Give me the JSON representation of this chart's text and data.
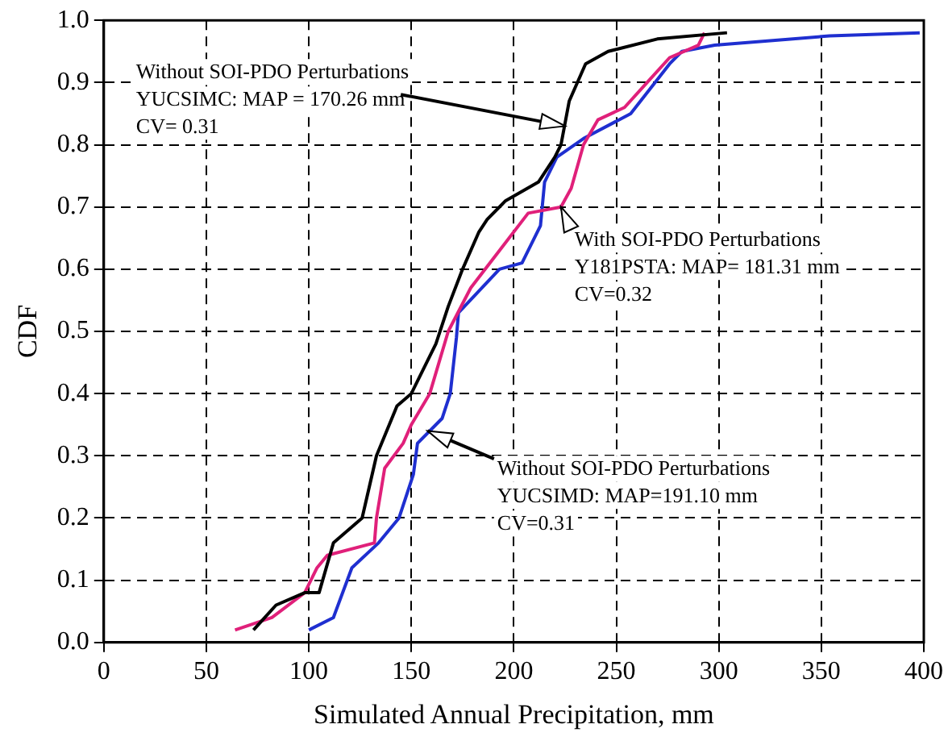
{
  "chart_data": {
    "type": "line",
    "xlabel": "Simulated Annual Precipitation, mm",
    "ylabel": "CDF",
    "xlim": [
      0,
      400
    ],
    "xticks": [
      0,
      50,
      100,
      150,
      200,
      250,
      300,
      350,
      400
    ],
    "ylim": [
      0,
      1
    ],
    "yticks": [
      {
        "value": 0,
        "label": "0.0"
      },
      0.1,
      0.2,
      0.3,
      0.4,
      0.5,
      0.6,
      0.7,
      0.8,
      0.9,
      {
        "value": 1,
        "label": "1.0"
      }
    ],
    "grid": true,
    "marker": "none",
    "line_style": "solid",
    "series": [
      {
        "color": "#000000",
        "x": [
          73,
          84,
          98,
          105,
          112,
          126,
          133,
          143,
          150,
          162,
          168,
          175,
          183,
          187,
          196,
          212,
          220,
          223,
          227,
          235,
          246,
          270,
          304
        ],
        "values": [
          0.02,
          0.06,
          0.08,
          0.08,
          0.16,
          0.2,
          0.3,
          0.38,
          0.4,
          0.48,
          0.54,
          0.6,
          0.66,
          0.68,
          0.71,
          0.74,
          0.78,
          0.8,
          0.87,
          0.93,
          0.95,
          0.97,
          0.98
        ]
      },
      {
        "color": "#e0207a",
        "x": [
          64,
          82,
          98,
          104,
          109,
          132,
          133,
          137,
          146,
          150,
          159,
          168,
          179,
          193,
          207,
          223,
          228,
          234,
          241,
          254,
          265,
          276,
          290,
          293
        ],
        "values": [
          0.02,
          0.04,
          0.08,
          0.12,
          0.14,
          0.16,
          0.2,
          0.28,
          0.32,
          0.35,
          0.4,
          0.5,
          0.57,
          0.63,
          0.69,
          0.7,
          0.73,
          0.8,
          0.84,
          0.86,
          0.9,
          0.94,
          0.96,
          0.98
        ]
      },
      {
        "color": "#1f2fd0",
        "x": [
          100,
          112,
          121,
          134,
          144,
          151,
          153,
          165,
          169,
          172,
          173,
          193,
          204,
          213,
          215,
          221,
          234,
          257,
          276,
          282,
          298,
          354,
          398
        ],
        "values": [
          0.02,
          0.04,
          0.12,
          0.16,
          0.2,
          0.27,
          0.32,
          0.36,
          0.4,
          0.49,
          0.53,
          0.6,
          0.61,
          0.67,
          0.74,
          0.78,
          0.81,
          0.85,
          0.93,
          0.95,
          0.96,
          0.975,
          0.98
        ]
      }
    ],
    "annotations": [
      {
        "text": "Without SOI-PDO Perturbations\nYUCSIMC: MAP = 170.26 mm\nCV= 0.31",
        "x": 225,
        "y": 0.83
      },
      {
        "text": "With SOI-PDO Perturbations\nY181PSTA: MAP= 181.31 mm\nCV=0.32",
        "x": 223,
        "y": 0.7
      },
      {
        "text": "Without SOI-PDO Perturbations\nYUCSIMD: MAP=191.10 mm\nCV=0.31",
        "x": 158,
        "y": 0.34
      }
    ]
  }
}
